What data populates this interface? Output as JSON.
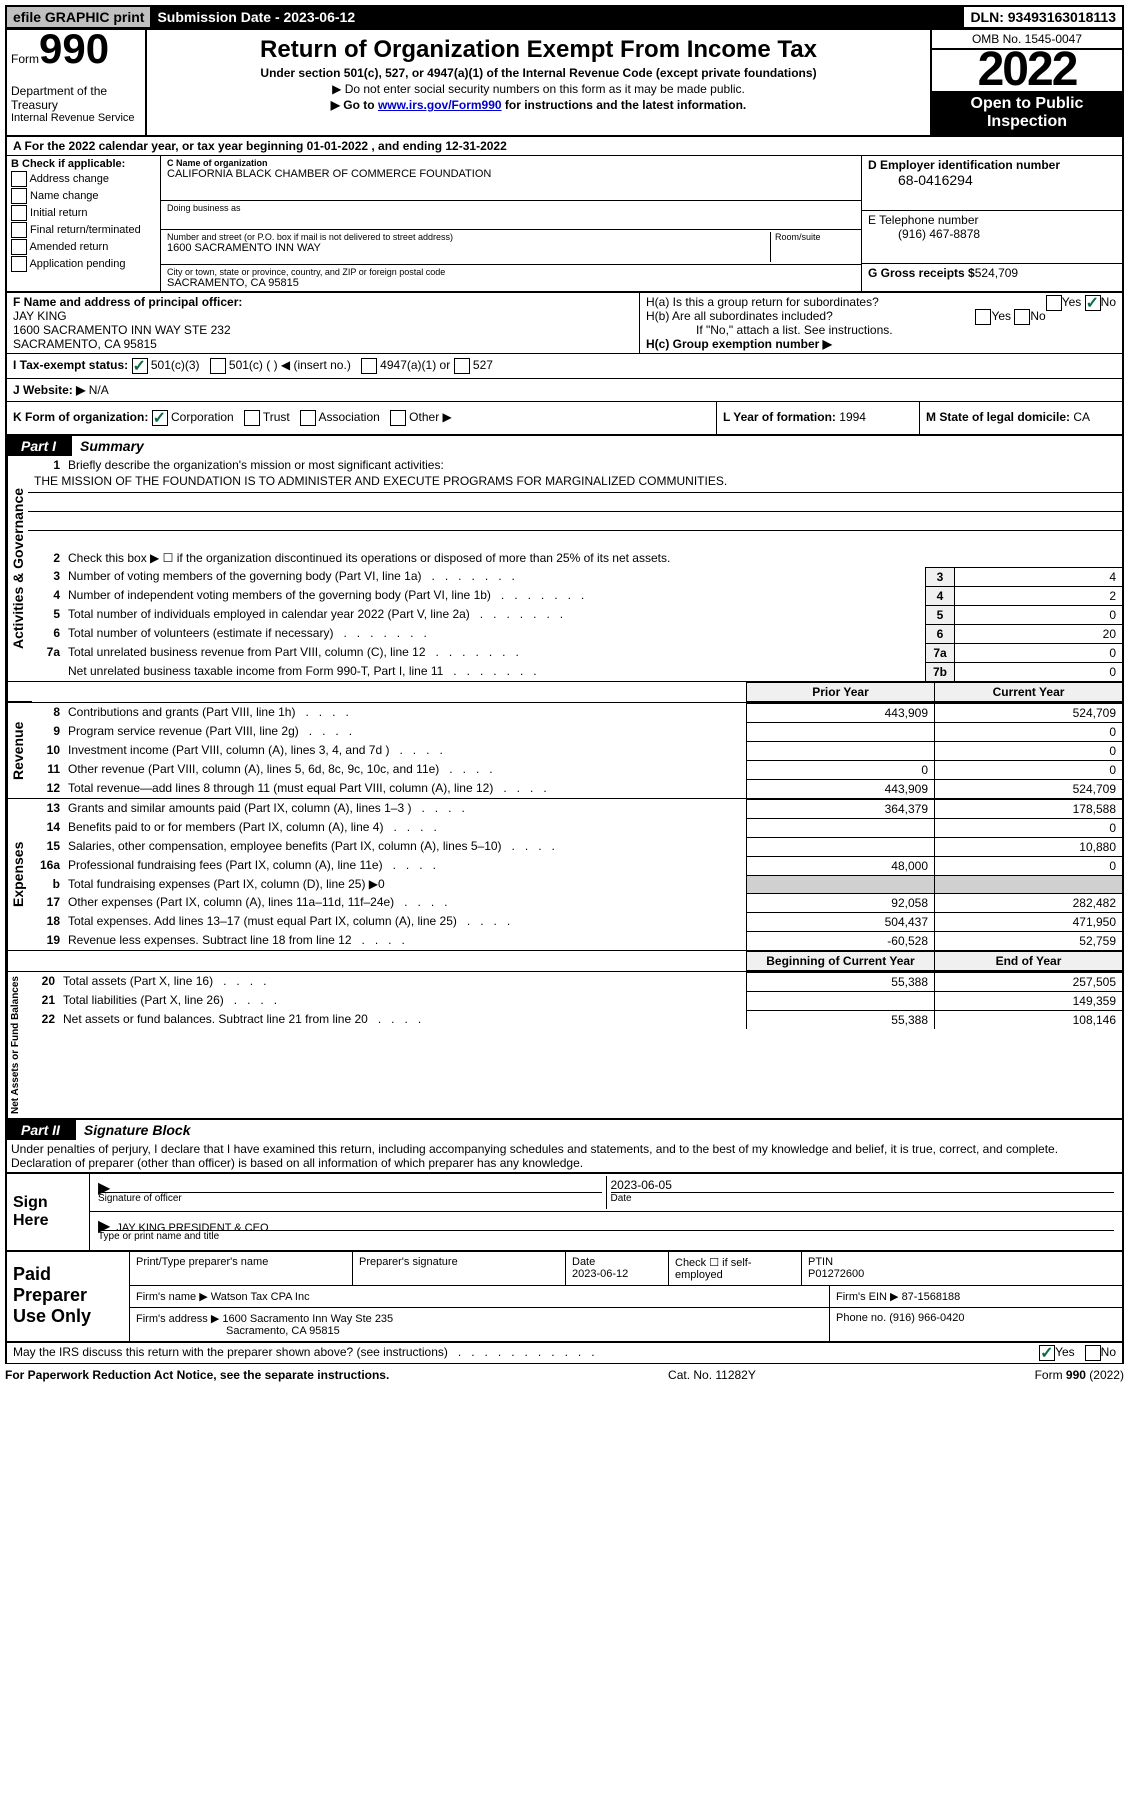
{
  "top": {
    "efile": "efile GRAPHIC print",
    "sub": "Submission Date - 2023-06-12",
    "dln": "DLN: 93493163018113"
  },
  "header": {
    "form_word": "Form",
    "form_num": "990",
    "dept1": "Department of the Treasury",
    "dept2": "Internal Revenue Service",
    "title": "Return of Organization Exempt From Income Tax",
    "sub1": "Under section 501(c), 527, or 4947(a)(1) of the Internal Revenue Code (except private foundations)",
    "sub2": "▶ Do not enter social security numbers on this form as it may be made public.",
    "sub3a": "▶ Go to ",
    "sub3_link": "www.irs.gov/Form990",
    "sub3b": " for instructions and the latest information.",
    "omb": "OMB No. 1545-0047",
    "year": "2022",
    "open": "Open to Public Inspection"
  },
  "line_a": "A For the 2022 calendar year, or tax year beginning 01-01-2022    , and ending 12-31-2022",
  "col_b": {
    "hdr": "B Check if applicable:",
    "items": [
      "Address change",
      "Name change",
      "Initial return",
      "Final return/terminated",
      "Amended return",
      "Application pending"
    ]
  },
  "col_c": {
    "c_lbl": "C Name of organization",
    "c_name": "CALIFORNIA BLACK CHAMBER OF COMMERCE FOUNDATION",
    "dba_lbl": "Doing business as",
    "dba": "",
    "street_lbl": "Number and street (or P.O. box if mail is not delivered to street address)",
    "room_lbl": "Room/suite",
    "street": "1600 SACRAMENTO INN WAY",
    "city_lbl": "City or town, state or province, country, and ZIP or foreign postal code",
    "city": "SACRAMENTO, CA  95815"
  },
  "col_d": {
    "d_lbl": "D Employer identification number",
    "ein": "68-0416294",
    "e_lbl": "E Telephone number",
    "phone": "(916) 467-8878",
    "g_lbl": "G Gross receipts $",
    "gross": "524,709"
  },
  "col_f": {
    "lbl": "F Name and address of principal officer:",
    "name": "JAY KING",
    "addr1": "1600 SACRAMENTO INN WAY STE 232",
    "addr2": "SACRAMENTO, CA  95815"
  },
  "col_h": {
    "ha": "H(a)  Is this a group return for subordinates?",
    "hb": "H(b)  Are all subordinates included?",
    "hb2": "If \"No,\" attach a list. See instructions.",
    "hc": "H(c)  Group exemption number ▶",
    "yes": "Yes",
    "no": "No"
  },
  "row_i": {
    "lbl": "I     Tax-exempt status:",
    "c3": "501(c)(3)",
    "c": "501(c) (   ) ◀ (insert no.)",
    "a1": "4947(a)(1) or",
    "s527": "527"
  },
  "row_j": {
    "lbl": "J    Website: ▶",
    "val": "N/A"
  },
  "row_k": {
    "lbl": "K Form of organization:",
    "corp": "Corporation",
    "trust": "Trust",
    "assoc": "Association",
    "other": "Other ▶",
    "l_lbl": "L Year of formation:",
    "l_val": "1994",
    "m_lbl": "M State of legal domicile:",
    "m_val": "CA"
  },
  "part1": {
    "tab": "Part I",
    "title": "Summary",
    "mission_lbl": "Briefly describe the organization's mission or most significant activities:",
    "mission": "THE MISSION OF THE FOUNDATION IS TO ADMINISTER AND EXECUTE PROGRAMS FOR MARGINALIZED COMMUNITIES.",
    "line2": "Check this box ▶ ☐  if the organization discontinued its operations or disposed of more than 25% of its net assets.",
    "lines_ag": [
      {
        "n": "3",
        "d": "Number of voting members of the governing body (Part VI, line 1a)",
        "b": "3",
        "v": "4"
      },
      {
        "n": "4",
        "d": "Number of independent voting members of the governing body (Part VI, line 1b)",
        "b": "4",
        "v": "2"
      },
      {
        "n": "5",
        "d": "Total number of individuals employed in calendar year 2022 (Part V, line 2a)",
        "b": "5",
        "v": "0"
      },
      {
        "n": "6",
        "d": "Total number of volunteers (estimate if necessary)",
        "b": "6",
        "v": "20"
      },
      {
        "n": "7a",
        "d": "Total unrelated business revenue from Part VIII, column (C), line 12",
        "b": "7a",
        "v": "0"
      },
      {
        "n": "",
        "d": "Net unrelated business taxable income from Form 990-T, Part I, line 11",
        "b": "7b",
        "v": "0"
      }
    ],
    "hdr_prior": "Prior Year",
    "hdr_curr": "Current Year",
    "lines_rev": [
      {
        "n": "8",
        "d": "Contributions and grants (Part VIII, line 1h)",
        "p": "443,909",
        "c": "524,709"
      },
      {
        "n": "9",
        "d": "Program service revenue (Part VIII, line 2g)",
        "p": "",
        "c": "0"
      },
      {
        "n": "10",
        "d": "Investment income (Part VIII, column (A), lines 3, 4, and 7d )",
        "p": "",
        "c": "0"
      },
      {
        "n": "11",
        "d": "Other revenue (Part VIII, column (A), lines 5, 6d, 8c, 9c, 10c, and 11e)",
        "p": "0",
        "c": "0"
      },
      {
        "n": "12",
        "d": "Total revenue—add lines 8 through 11 (must equal Part VIII, column (A), line 12)",
        "p": "443,909",
        "c": "524,709"
      }
    ],
    "lines_exp": [
      {
        "n": "13",
        "d": "Grants and similar amounts paid (Part IX, column (A), lines 1–3 )",
        "p": "364,379",
        "c": "178,588"
      },
      {
        "n": "14",
        "d": "Benefits paid to or for members (Part IX, column (A), line 4)",
        "p": "",
        "c": "0"
      },
      {
        "n": "15",
        "d": "Salaries, other compensation, employee benefits (Part IX, column (A), lines 5–10)",
        "p": "",
        "c": "10,880"
      },
      {
        "n": "16a",
        "d": "Professional fundraising fees (Part IX, column (A), line 11e)",
        "p": "48,000",
        "c": "0"
      },
      {
        "n": "b",
        "d": "Total fundraising expenses (Part IX, column (D), line 25) ▶0",
        "p": "gray",
        "c": "gray"
      },
      {
        "n": "17",
        "d": "Other expenses (Part IX, column (A), lines 11a–11d, 11f–24e)",
        "p": "92,058",
        "c": "282,482"
      },
      {
        "n": "18",
        "d": "Total expenses. Add lines 13–17 (must equal Part IX, column (A), line 25)",
        "p": "504,437",
        "c": "471,950"
      },
      {
        "n": "19",
        "d": "Revenue less expenses. Subtract line 18 from line 12",
        "p": "-60,528",
        "c": "52,759"
      }
    ],
    "hdr_beg": "Beginning of Current Year",
    "hdr_end": "End of Year",
    "lines_na": [
      {
        "n": "20",
        "d": "Total assets (Part X, line 16)",
        "p": "55,388",
        "c": "257,505"
      },
      {
        "n": "21",
        "d": "Total liabilities (Part X, line 26)",
        "p": "",
        "c": "149,359"
      },
      {
        "n": "22",
        "d": "Net assets or fund balances. Subtract line 21 from line 20",
        "p": "55,388",
        "c": "108,146"
      }
    ],
    "vl_ag": "Activities & Governance",
    "vl_rev": "Revenue",
    "vl_exp": "Expenses",
    "vl_na": "Net Assets or Fund Balances"
  },
  "part2": {
    "tab": "Part II",
    "title": "Signature Block",
    "decl": "Under penalties of perjury, I declare that I have examined this return, including accompanying schedules and statements, and to the best of my knowledge and belief, it is true, correct, and complete. Declaration of preparer (other than officer) is based on all information of which preparer has any knowledge.",
    "sign_here": "Sign Here",
    "sig_off": "Signature of officer",
    "sig_date": "Date",
    "sig_date_val": "2023-06-05",
    "name_title": "JAY KING PRESIDENT & CEO",
    "name_lbl": "Type or print name and title",
    "paid_hdr": "Paid Preparer Use Only",
    "pp_name": "Print/Type preparer's name",
    "pp_sig": "Preparer's signature",
    "pp_date": "Date",
    "pp_date_val": "2023-06-12",
    "pp_check": "Check ☐ if self-employed",
    "ptin_lbl": "PTIN",
    "ptin": "P01272600",
    "firm_name_lbl": "Firm's name    ▶",
    "firm_name": "Watson Tax CPA Inc",
    "firm_ein_lbl": "Firm's EIN ▶",
    "firm_ein": "87-1568188",
    "firm_addr_lbl": "Firm's address ▶",
    "firm_addr1": "1600 Sacramento Inn Way Ste 235",
    "firm_addr2": "Sacramento, CA  95815",
    "firm_phone_lbl": "Phone no.",
    "firm_phone": "(916) 966-0420",
    "may_irs": "May the IRS discuss this return with the preparer shown above? (see instructions)",
    "yes": "Yes",
    "no": "No"
  },
  "footer": {
    "pra": "For Paperwork Reduction Act Notice, see the separate instructions.",
    "cat": "Cat. No. 11282Y",
    "form": "Form 990 (2022)"
  }
}
